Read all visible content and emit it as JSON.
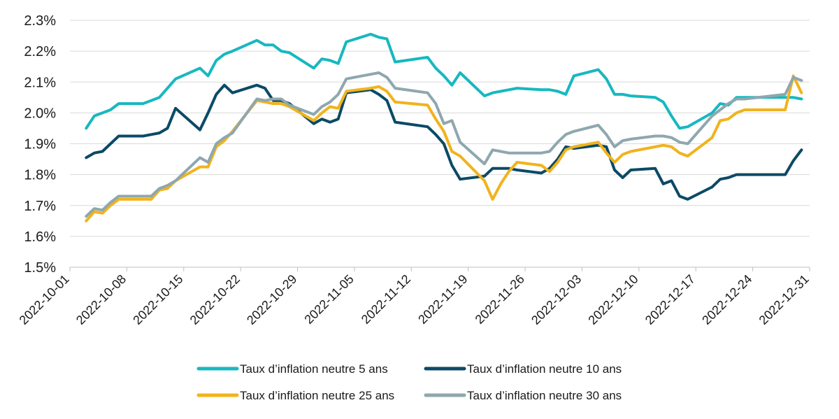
{
  "chart_data": {
    "type": "line",
    "title": "",
    "xlabel": "",
    "ylabel": "",
    "ylim": [
      1.5,
      2.3
    ],
    "y_ticks": [
      "1.5%",
      "1.6%",
      "1.7%",
      "1.8%",
      "1.9%",
      "2.0%",
      "2.1%",
      "2.2%",
      "2.3%"
    ],
    "x_ticks": [
      "2022-10-01",
      "2022-10-08",
      "2022-10-15",
      "2022-10-22",
      "2022-10-29",
      "2022-11-05",
      "2022-11-12",
      "2022-11-19",
      "2022-11-26",
      "2022-12-03",
      "2022-12-10",
      "2022-12-17",
      "2022-12-24",
      "2022-12-31"
    ],
    "grid": true,
    "legend_position": "bottom",
    "x": [
      "2022-10-03",
      "2022-10-04",
      "2022-10-05",
      "2022-10-06",
      "2022-10-07",
      "2022-10-10",
      "2022-10-11",
      "2022-10-12",
      "2022-10-13",
      "2022-10-14",
      "2022-10-17",
      "2022-10-18",
      "2022-10-19",
      "2022-10-20",
      "2022-10-21",
      "2022-10-24",
      "2022-10-25",
      "2022-10-26",
      "2022-10-27",
      "2022-10-28",
      "2022-10-31",
      "2022-11-01",
      "2022-11-02",
      "2022-11-03",
      "2022-11-04",
      "2022-11-07",
      "2022-11-08",
      "2022-11-09",
      "2022-11-10",
      "2022-11-14",
      "2022-11-15",
      "2022-11-16",
      "2022-11-17",
      "2022-11-18",
      "2022-11-21",
      "2022-11-22",
      "2022-11-23",
      "2022-11-24",
      "2022-11-25",
      "2022-11-28",
      "2022-11-29",
      "2022-11-30",
      "2022-12-01",
      "2022-12-02",
      "2022-12-05",
      "2022-12-06",
      "2022-12-07",
      "2022-12-08",
      "2022-12-09",
      "2022-12-12",
      "2022-12-13",
      "2022-12-14",
      "2022-12-15",
      "2022-12-16",
      "2022-12-19",
      "2022-12-20",
      "2022-12-21",
      "2022-12-22",
      "2022-12-23",
      "2022-12-28",
      "2022-12-29",
      "2022-12-30"
    ],
    "series": [
      {
        "name": "Taux d’inflation neutre 5 ans",
        "color": "#17b8c0",
        "values": [
          1.95,
          1.99,
          2.0,
          2.01,
          2.03,
          2.03,
          2.04,
          2.05,
          2.08,
          2.11,
          2.145,
          2.12,
          2.17,
          2.19,
          2.2,
          2.235,
          2.22,
          2.22,
          2.2,
          2.195,
          2.145,
          2.175,
          2.17,
          2.16,
          2.23,
          2.255,
          2.245,
          2.24,
          2.165,
          2.18,
          2.145,
          2.12,
          2.09,
          2.13,
          2.055,
          2.065,
          2.07,
          2.075,
          2.08,
          2.075,
          2.075,
          2.07,
          2.06,
          2.12,
          2.14,
          2.11,
          2.06,
          2.06,
          2.055,
          2.05,
          2.035,
          1.99,
          1.95,
          1.955,
          2.0,
          2.03,
          2.025,
          2.05,
          2.05,
          2.05,
          2.05,
          2.045
        ]
      },
      {
        "name": "Taux d’inflation neutre 10 ans",
        "color": "#0b4a66",
        "values": [
          1.855,
          1.87,
          1.875,
          1.9,
          1.925,
          1.925,
          1.93,
          1.935,
          1.95,
          2.015,
          1.945,
          2.0,
          2.06,
          2.09,
          2.065,
          2.09,
          2.08,
          2.04,
          2.04,
          2.03,
          1.965,
          1.98,
          1.97,
          1.98,
          2.065,
          2.075,
          2.06,
          2.04,
          1.97,
          1.955,
          1.93,
          1.9,
          1.83,
          1.785,
          1.795,
          1.82,
          1.82,
          1.82,
          1.815,
          1.805,
          1.82,
          1.85,
          1.89,
          1.885,
          1.895,
          1.89,
          1.815,
          1.79,
          1.815,
          1.82,
          1.77,
          1.78,
          1.73,
          1.72,
          1.76,
          1.785,
          1.79,
          1.8,
          1.8,
          1.8,
          1.845,
          1.88
        ]
      },
      {
        "name": "Taux d’inflation neutre 25 ans",
        "color": "#f1b31c",
        "values": [
          1.65,
          1.68,
          1.675,
          1.7,
          1.72,
          1.72,
          1.72,
          1.75,
          1.755,
          1.78,
          1.825,
          1.825,
          1.89,
          1.91,
          1.94,
          2.04,
          2.035,
          2.03,
          2.03,
          2.02,
          1.975,
          2.0,
          2.02,
          2.015,
          2.07,
          2.08,
          2.085,
          2.07,
          2.035,
          2.025,
          1.98,
          1.94,
          1.875,
          1.86,
          1.78,
          1.72,
          1.77,
          1.81,
          1.84,
          1.83,
          1.81,
          1.84,
          1.88,
          1.89,
          1.905,
          1.87,
          1.84,
          1.865,
          1.875,
          1.89,
          1.895,
          1.89,
          1.87,
          1.86,
          1.92,
          1.975,
          1.98,
          2.0,
          2.01,
          2.01,
          2.12,
          2.065
        ]
      },
      {
        "name": "Taux d’inflation neutre 30 ans",
        "color": "#8fa7ae",
        "values": [
          1.665,
          1.69,
          1.685,
          1.71,
          1.73,
          1.73,
          1.73,
          1.755,
          1.765,
          1.78,
          1.855,
          1.84,
          1.9,
          1.92,
          1.935,
          2.045,
          2.04,
          2.045,
          2.045,
          2.025,
          1.995,
          2.02,
          2.035,
          2.06,
          2.11,
          2.125,
          2.13,
          2.115,
          2.08,
          2.065,
          2.03,
          1.965,
          1.975,
          1.905,
          1.835,
          1.88,
          1.875,
          1.87,
          1.87,
          1.87,
          1.875,
          1.905,
          1.93,
          1.94,
          1.96,
          1.93,
          1.89,
          1.91,
          1.915,
          1.925,
          1.925,
          1.92,
          1.905,
          1.9,
          1.99,
          2.01,
          2.03,
          2.045,
          2.045,
          2.06,
          2.115,
          2.105
        ]
      }
    ]
  }
}
